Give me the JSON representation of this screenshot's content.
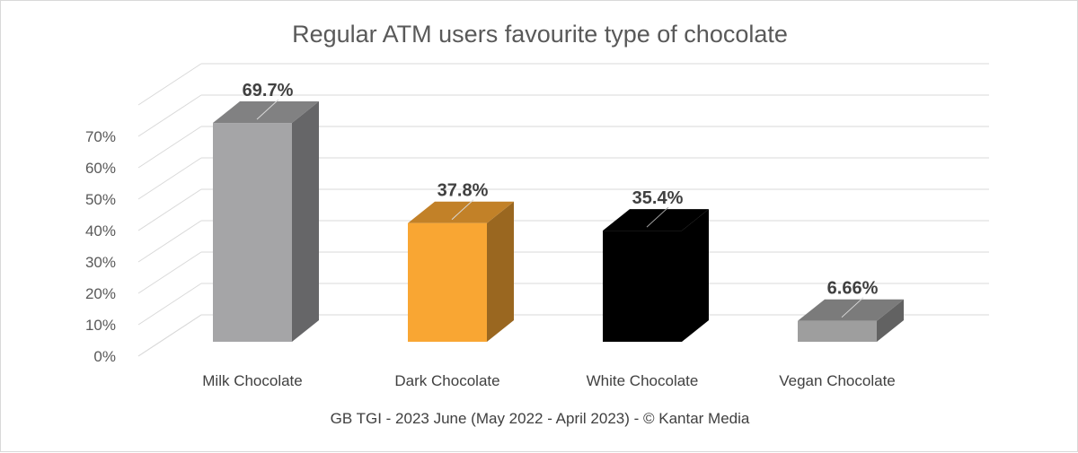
{
  "chart_data": {
    "type": "bar",
    "title": "Regular ATM users favourite type of chocolate",
    "source": "GB TGI - 2023 June (May 2022 - April 2023) - © Kantar Media",
    "categories": [
      "Milk Chocolate",
      "Dark Chocolate",
      "White Chocolate",
      "Vegan Chocolate"
    ],
    "values": [
      69.7,
      37.8,
      35.4,
      6.66
    ],
    "data_labels": [
      "69.7%",
      "37.8%",
      "35.4%",
      "6.66%"
    ],
    "bar_colors": [
      "#a5a5a7",
      "#f9a633",
      "#000000",
      "#9e9e9e"
    ],
    "yticks": [
      "0%",
      "10%",
      "20%",
      "30%",
      "40%",
      "50%",
      "60%",
      "70%"
    ],
    "ylim": [
      0,
      80
    ],
    "grid": true,
    "legend": "none",
    "style": "3d-column"
  }
}
